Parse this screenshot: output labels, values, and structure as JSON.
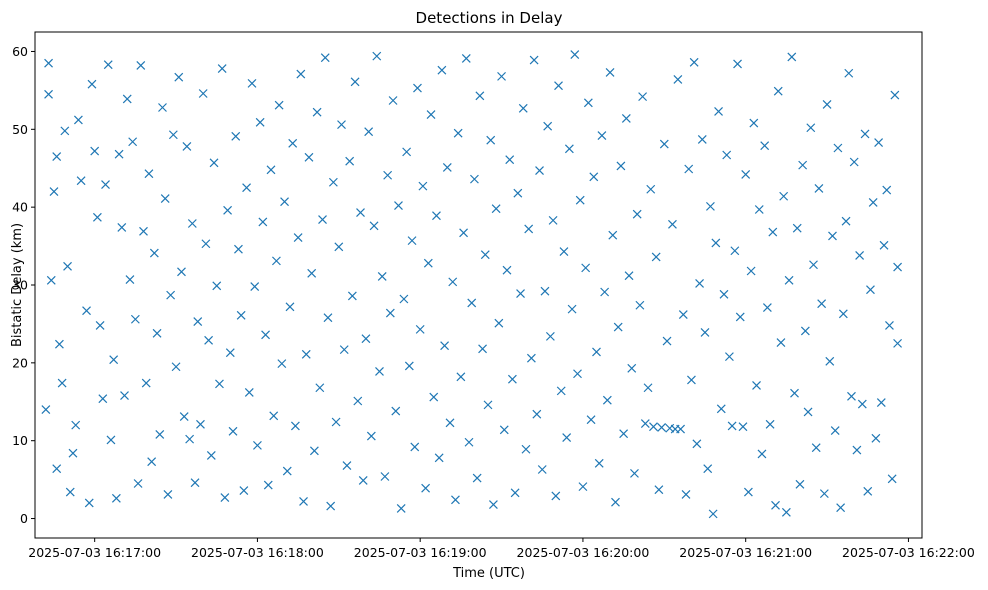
{
  "chart_data": {
    "type": "scatter",
    "title": "Detections in Delay",
    "xlabel": "Time (UTC)",
    "ylabel": "Bistatic Delay (km)",
    "marker": "x",
    "color": "#1f77b4",
    "x_ticks": [
      "2025-07-03 16:17:00",
      "2025-07-03 16:18:00",
      "2025-07-03 16:19:00",
      "2025-07-03 16:20:00",
      "2025-07-03 16:21:00",
      "2025-07-03 16:22:00"
    ],
    "xlim": [
      "2025-07-03 16:16:38",
      "2025-07-03 16:22:05"
    ],
    "y_ticks": [
      0,
      10,
      20,
      30,
      40,
      50,
      60
    ],
    "ylim": [
      -2.5,
      62.5
    ],
    "grid": false,
    "points": [
      [
        "2025-07-03 16:16:42",
        14
      ],
      [
        "2025-07-03 16:16:43",
        54.5
      ],
      [
        "2025-07-03 16:16:43",
        58.5
      ],
      [
        "2025-07-03 16:16:44",
        30.6
      ],
      [
        "2025-07-03 16:16:45",
        42
      ],
      [
        "2025-07-03 16:16:46",
        6.4
      ],
      [
        "2025-07-03 16:16:46",
        46.5
      ],
      [
        "2025-07-03 16:16:47",
        22.4
      ],
      [
        "2025-07-03 16:16:48",
        17.4
      ],
      [
        "2025-07-03 16:16:49",
        49.8
      ],
      [
        "2025-07-03 16:16:50",
        32.4
      ],
      [
        "2025-07-03 16:16:51",
        3.4
      ],
      [
        "2025-07-03 16:16:52",
        8.4
      ],
      [
        "2025-07-03 16:16:53",
        12
      ],
      [
        "2025-07-03 16:16:54",
        51.2
      ],
      [
        "2025-07-03 16:16:55",
        43.4
      ],
      [
        "2025-07-03 16:16:57",
        26.7
      ],
      [
        "2025-07-03 16:16:58",
        2
      ],
      [
        "2025-07-03 16:16:59",
        55.8
      ],
      [
        "2025-07-03 16:17:00",
        47.2
      ],
      [
        "2025-07-03 16:17:01",
        38.7
      ],
      [
        "2025-07-03 16:17:02",
        24.8
      ],
      [
        "2025-07-03 16:17:03",
        15.4
      ],
      [
        "2025-07-03 16:17:04",
        42.9
      ],
      [
        "2025-07-03 16:17:05",
        58.3
      ],
      [
        "2025-07-03 16:17:06",
        10.1
      ],
      [
        "2025-07-03 16:17:07",
        20.4
      ],
      [
        "2025-07-03 16:17:08",
        2.6
      ],
      [
        "2025-07-03 16:17:09",
        46.8
      ],
      [
        "2025-07-03 16:17:10",
        37.4
      ],
      [
        "2025-07-03 16:17:11",
        15.8
      ],
      [
        "2025-07-03 16:17:12",
        53.9
      ],
      [
        "2025-07-03 16:17:13",
        30.7
      ],
      [
        "2025-07-03 16:17:14",
        48.4
      ],
      [
        "2025-07-03 16:17:15",
        25.6
      ],
      [
        "2025-07-03 16:17:16",
        4.5
      ],
      [
        "2025-07-03 16:17:17",
        58.2
      ],
      [
        "2025-07-03 16:17:18",
        36.9
      ],
      [
        "2025-07-03 16:17:19",
        17.4
      ],
      [
        "2025-07-03 16:17:20",
        44.3
      ],
      [
        "2025-07-03 16:17:21",
        7.3
      ],
      [
        "2025-07-03 16:17:22",
        34.1
      ],
      [
        "2025-07-03 16:17:23",
        23.8
      ],
      [
        "2025-07-03 16:17:24",
        10.8
      ],
      [
        "2025-07-03 16:17:25",
        52.8
      ],
      [
        "2025-07-03 16:17:26",
        41.1
      ],
      [
        "2025-07-03 16:17:27",
        3.1
      ],
      [
        "2025-07-03 16:17:28",
        28.7
      ],
      [
        "2025-07-03 16:17:29",
        49.3
      ],
      [
        "2025-07-03 16:17:30",
        19.5
      ],
      [
        "2025-07-03 16:17:31",
        56.7
      ],
      [
        "2025-07-03 16:17:32",
        31.7
      ],
      [
        "2025-07-03 16:17:33",
        13.1
      ],
      [
        "2025-07-03 16:17:34",
        47.8
      ],
      [
        "2025-07-03 16:17:35",
        10.2
      ],
      [
        "2025-07-03 16:17:36",
        37.9
      ],
      [
        "2025-07-03 16:17:37",
        4.6
      ],
      [
        "2025-07-03 16:17:38",
        25.3
      ],
      [
        "2025-07-03 16:17:39",
        12.1
      ],
      [
        "2025-07-03 16:17:40",
        54.6
      ],
      [
        "2025-07-03 16:17:41",
        35.3
      ],
      [
        "2025-07-03 16:17:42",
        22.9
      ],
      [
        "2025-07-03 16:17:43",
        8.1
      ],
      [
        "2025-07-03 16:17:44",
        45.7
      ],
      [
        "2025-07-03 16:17:45",
        29.9
      ],
      [
        "2025-07-03 16:17:46",
        17.3
      ],
      [
        "2025-07-03 16:17:47",
        57.8
      ],
      [
        "2025-07-03 16:17:48",
        2.7
      ],
      [
        "2025-07-03 16:17:49",
        39.6
      ],
      [
        "2025-07-03 16:17:50",
        21.3
      ],
      [
        "2025-07-03 16:17:51",
        11.2
      ],
      [
        "2025-07-03 16:17:52",
        49.1
      ],
      [
        "2025-07-03 16:17:53",
        34.6
      ],
      [
        "2025-07-03 16:17:54",
        26.1
      ],
      [
        "2025-07-03 16:17:55",
        3.6
      ],
      [
        "2025-07-03 16:17:56",
        42.5
      ],
      [
        "2025-07-03 16:17:57",
        16.2
      ],
      [
        "2025-07-03 16:17:58",
        55.9
      ],
      [
        "2025-07-03 16:17:59",
        29.8
      ],
      [
        "2025-07-03 16:18:00",
        9.4
      ],
      [
        "2025-07-03 16:18:01",
        50.9
      ],
      [
        "2025-07-03 16:18:02",
        38.1
      ],
      [
        "2025-07-03 16:18:03",
        23.6
      ],
      [
        "2025-07-03 16:18:04",
        4.3
      ],
      [
        "2025-07-03 16:18:05",
        44.8
      ],
      [
        "2025-07-03 16:18:06",
        13.2
      ],
      [
        "2025-07-03 16:18:07",
        33.1
      ],
      [
        "2025-07-03 16:18:08",
        53.1
      ],
      [
        "2025-07-03 16:18:09",
        19.9
      ],
      [
        "2025-07-03 16:18:10",
        40.7
      ],
      [
        "2025-07-03 16:18:11",
        6.1
      ],
      [
        "2025-07-03 16:18:12",
        27.2
      ],
      [
        "2025-07-03 16:18:13",
        48.2
      ],
      [
        "2025-07-03 16:18:14",
        11.9
      ],
      [
        "2025-07-03 16:18:15",
        36.1
      ],
      [
        "2025-07-03 16:18:16",
        57.1
      ],
      [
        "2025-07-03 16:18:17",
        2.2
      ],
      [
        "2025-07-03 16:18:18",
        21.1
      ],
      [
        "2025-07-03 16:18:19",
        46.4
      ],
      [
        "2025-07-03 16:18:20",
        31.5
      ],
      [
        "2025-07-03 16:18:21",
        8.7
      ],
      [
        "2025-07-03 16:18:22",
        52.2
      ],
      [
        "2025-07-03 16:18:23",
        16.8
      ],
      [
        "2025-07-03 16:18:24",
        38.4
      ],
      [
        "2025-07-03 16:18:25",
        59.2
      ],
      [
        "2025-07-03 16:18:26",
        25.8
      ],
      [
        "2025-07-03 16:18:27",
        1.6
      ],
      [
        "2025-07-03 16:18:28",
        43.2
      ],
      [
        "2025-07-03 16:18:29",
        12.4
      ],
      [
        "2025-07-03 16:18:30",
        34.9
      ],
      [
        "2025-07-03 16:18:31",
        50.6
      ],
      [
        "2025-07-03 16:18:32",
        21.7
      ],
      [
        "2025-07-03 16:18:33",
        6.8
      ],
      [
        "2025-07-03 16:18:34",
        45.9
      ],
      [
        "2025-07-03 16:18:35",
        28.6
      ],
      [
        "2025-07-03 16:18:36",
        56.1
      ],
      [
        "2025-07-03 16:18:37",
        15.1
      ],
      [
        "2025-07-03 16:18:38",
        39.3
      ],
      [
        "2025-07-03 16:18:39",
        4.9
      ],
      [
        "2025-07-03 16:18:40",
        23.1
      ],
      [
        "2025-07-03 16:18:41",
        49.7
      ],
      [
        "2025-07-03 16:18:42",
        10.6
      ],
      [
        "2025-07-03 16:18:43",
        37.6
      ],
      [
        "2025-07-03 16:18:44",
        59.4
      ],
      [
        "2025-07-03 16:18:45",
        18.9
      ],
      [
        "2025-07-03 16:18:46",
        31.1
      ],
      [
        "2025-07-03 16:18:47",
        5.4
      ],
      [
        "2025-07-03 16:18:48",
        44.1
      ],
      [
        "2025-07-03 16:18:49",
        26.4
      ],
      [
        "2025-07-03 16:18:50",
        53.7
      ],
      [
        "2025-07-03 16:18:51",
        13.8
      ],
      [
        "2025-07-03 16:18:52",
        40.2
      ],
      [
        "2025-07-03 16:18:53",
        1.3
      ],
      [
        "2025-07-03 16:18:54",
        28.2
      ],
      [
        "2025-07-03 16:18:55",
        47.1
      ],
      [
        "2025-07-03 16:18:56",
        19.6
      ],
      [
        "2025-07-03 16:18:57",
        35.7
      ],
      [
        "2025-07-03 16:18:58",
        9.2
      ],
      [
        "2025-07-03 16:18:59",
        55.3
      ],
      [
        "2025-07-03 16:19:00",
        24.3
      ],
      [
        "2025-07-03 16:19:01",
        42.7
      ],
      [
        "2025-07-03 16:19:02",
        3.9
      ],
      [
        "2025-07-03 16:19:03",
        32.8
      ],
      [
        "2025-07-03 16:19:04",
        51.9
      ],
      [
        "2025-07-03 16:19:05",
        15.6
      ],
      [
        "2025-07-03 16:19:06",
        38.9
      ],
      [
        "2025-07-03 16:19:07",
        7.8
      ],
      [
        "2025-07-03 16:19:08",
        57.6
      ],
      [
        "2025-07-03 16:19:09",
        22.2
      ],
      [
        "2025-07-03 16:19:10",
        45.1
      ],
      [
        "2025-07-03 16:19:11",
        12.3
      ],
      [
        "2025-07-03 16:19:12",
        30.4
      ],
      [
        "2025-07-03 16:19:13",
        2.4
      ],
      [
        "2025-07-03 16:19:14",
        49.5
      ],
      [
        "2025-07-03 16:19:15",
        18.2
      ],
      [
        "2025-07-03 16:19:16",
        36.7
      ],
      [
        "2025-07-03 16:19:17",
        59.1
      ],
      [
        "2025-07-03 16:19:18",
        9.8
      ],
      [
        "2025-07-03 16:19:19",
        27.7
      ],
      [
        "2025-07-03 16:19:20",
        43.6
      ],
      [
        "2025-07-03 16:19:21",
        5.2
      ],
      [
        "2025-07-03 16:19:22",
        54.3
      ],
      [
        "2025-07-03 16:19:23",
        21.8
      ],
      [
        "2025-07-03 16:19:24",
        33.9
      ],
      [
        "2025-07-03 16:19:25",
        14.6
      ],
      [
        "2025-07-03 16:19:26",
        48.6
      ],
      [
        "2025-07-03 16:19:27",
        1.8
      ],
      [
        "2025-07-03 16:19:28",
        39.8
      ],
      [
        "2025-07-03 16:19:29",
        25.1
      ],
      [
        "2025-07-03 16:19:30",
        56.8
      ],
      [
        "2025-07-03 16:19:31",
        11.4
      ],
      [
        "2025-07-03 16:19:32",
        31.9
      ],
      [
        "2025-07-03 16:19:33",
        46.1
      ],
      [
        "2025-07-03 16:19:34",
        17.9
      ],
      [
        "2025-07-03 16:19:35",
        3.3
      ],
      [
        "2025-07-03 16:19:36",
        41.8
      ],
      [
        "2025-07-03 16:19:37",
        28.9
      ],
      [
        "2025-07-03 16:19:38",
        52.7
      ],
      [
        "2025-07-03 16:19:39",
        8.9
      ],
      [
        "2025-07-03 16:19:40",
        37.2
      ],
      [
        "2025-07-03 16:19:41",
        20.6
      ],
      [
        "2025-07-03 16:19:42",
        58.9
      ],
      [
        "2025-07-03 16:19:43",
        13.4
      ],
      [
        "2025-07-03 16:19:44",
        44.7
      ],
      [
        "2025-07-03 16:19:45",
        6.3
      ],
      [
        "2025-07-03 16:19:46",
        29.2
      ],
      [
        "2025-07-03 16:19:47",
        50.4
      ],
      [
        "2025-07-03 16:19:48",
        23.4
      ],
      [
        "2025-07-03 16:19:49",
        38.3
      ],
      [
        "2025-07-03 16:19:50",
        2.9
      ],
      [
        "2025-07-03 16:19:51",
        55.6
      ],
      [
        "2025-07-03 16:19:52",
        16.4
      ],
      [
        "2025-07-03 16:19:53",
        34.3
      ],
      [
        "2025-07-03 16:19:54",
        10.4
      ],
      [
        "2025-07-03 16:19:55",
        47.5
      ],
      [
        "2025-07-03 16:19:56",
        26.9
      ],
      [
        "2025-07-03 16:19:57",
        59.6
      ],
      [
        "2025-07-03 16:19:58",
        18.6
      ],
      [
        "2025-07-03 16:19:59",
        40.9
      ],
      [
        "2025-07-03 16:20:00",
        4.1
      ],
      [
        "2025-07-03 16:20:01",
        32.2
      ],
      [
        "2025-07-03 16:20:02",
        53.4
      ],
      [
        "2025-07-03 16:20:03",
        12.7
      ],
      [
        "2025-07-03 16:20:04",
        43.9
      ],
      [
        "2025-07-03 16:20:05",
        21.4
      ],
      [
        "2025-07-03 16:20:06",
        7.1
      ],
      [
        "2025-07-03 16:20:07",
        49.2
      ],
      [
        "2025-07-03 16:20:08",
        29.1
      ],
      [
        "2025-07-03 16:20:09",
        15.2
      ],
      [
        "2025-07-03 16:20:10",
        57.3
      ],
      [
        "2025-07-03 16:20:11",
        36.4
      ],
      [
        "2025-07-03 16:20:12",
        2.1
      ],
      [
        "2025-07-03 16:20:13",
        24.6
      ],
      [
        "2025-07-03 16:20:14",
        45.3
      ],
      [
        "2025-07-03 16:20:15",
        10.9
      ],
      [
        "2025-07-03 16:20:16",
        51.4
      ],
      [
        "2025-07-03 16:20:17",
        31.2
      ],
      [
        "2025-07-03 16:20:18",
        19.3
      ],
      [
        "2025-07-03 16:20:19",
        5.8
      ],
      [
        "2025-07-03 16:20:20",
        39.1
      ],
      [
        "2025-07-03 16:20:21",
        27.4
      ],
      [
        "2025-07-03 16:20:22",
        54.2
      ],
      [
        "2025-07-03 16:20:23",
        12.2
      ],
      [
        "2025-07-03 16:20:24",
        16.8
      ],
      [
        "2025-07-03 16:20:25",
        42.3
      ],
      [
        "2025-07-03 16:20:26",
        11.8
      ],
      [
        "2025-07-03 16:20:27",
        33.6
      ],
      [
        "2025-07-03 16:20:28",
        3.7
      ],
      [
        "2025-07-03 16:20:29",
        11.7
      ],
      [
        "2025-07-03 16:20:30",
        48.1
      ],
      [
        "2025-07-03 16:20:31",
        22.8
      ],
      [
        "2025-07-03 16:20:32",
        11.6
      ],
      [
        "2025-07-03 16:20:33",
        37.8
      ],
      [
        "2025-07-03 16:20:34",
        11.5
      ],
      [
        "2025-07-03 16:20:35",
        56.4
      ],
      [
        "2025-07-03 16:20:36",
        11.5
      ],
      [
        "2025-07-03 16:20:37",
        26.2
      ],
      [
        "2025-07-03 16:20:38",
        3.1
      ],
      [
        "2025-07-03 16:20:39",
        44.9
      ],
      [
        "2025-07-03 16:20:40",
        17.8
      ],
      [
        "2025-07-03 16:20:41",
        58.6
      ],
      [
        "2025-07-03 16:20:42",
        9.6
      ],
      [
        "2025-07-03 16:20:43",
        30.2
      ],
      [
        "2025-07-03 16:20:44",
        48.7
      ],
      [
        "2025-07-03 16:20:45",
        23.9
      ],
      [
        "2025-07-03 16:20:46",
        6.4
      ],
      [
        "2025-07-03 16:20:47",
        40.1
      ],
      [
        "2025-07-03 16:20:48",
        0.6
      ],
      [
        "2025-07-03 16:20:49",
        35.4
      ],
      [
        "2025-07-03 16:20:50",
        52.3
      ],
      [
        "2025-07-03 16:20:51",
        14.1
      ],
      [
        "2025-07-03 16:20:52",
        28.8
      ],
      [
        "2025-07-03 16:20:53",
        46.7
      ],
      [
        "2025-07-03 16:20:54",
        20.8
      ],
      [
        "2025-07-03 16:20:55",
        11.9
      ],
      [
        "2025-07-03 16:20:56",
        34.4
      ],
      [
        "2025-07-03 16:20:57",
        58.4
      ],
      [
        "2025-07-03 16:20:58",
        25.9
      ],
      [
        "2025-07-03 16:20:59",
        11.8
      ],
      [
        "2025-07-03 16:21:00",
        44.2
      ],
      [
        "2025-07-03 16:21:01",
        3.4
      ],
      [
        "2025-07-03 16:21:02",
        31.8
      ],
      [
        "2025-07-03 16:21:03",
        50.8
      ],
      [
        "2025-07-03 16:21:04",
        17.1
      ],
      [
        "2025-07-03 16:21:05",
        39.7
      ],
      [
        "2025-07-03 16:21:06",
        8.3
      ],
      [
        "2025-07-03 16:21:07",
        47.9
      ],
      [
        "2025-07-03 16:21:08",
        27.1
      ],
      [
        "2025-07-03 16:21:09",
        12.1
      ],
      [
        "2025-07-03 16:21:10",
        36.8
      ],
      [
        "2025-07-03 16:21:11",
        1.7
      ],
      [
        "2025-07-03 16:21:12",
        54.9
      ],
      [
        "2025-07-03 16:21:13",
        22.6
      ],
      [
        "2025-07-03 16:21:14",
        41.4
      ],
      [
        "2025-07-03 16:21:15",
        0.8
      ],
      [
        "2025-07-03 16:21:16",
        30.6
      ],
      [
        "2025-07-03 16:21:17",
        59.3
      ],
      [
        "2025-07-03 16:21:18",
        16.1
      ],
      [
        "2025-07-03 16:21:19",
        37.3
      ],
      [
        "2025-07-03 16:21:20",
        4.4
      ],
      [
        "2025-07-03 16:21:21",
        45.4
      ],
      [
        "2025-07-03 16:21:22",
        24.1
      ],
      [
        "2025-07-03 16:21:23",
        13.7
      ],
      [
        "2025-07-03 16:21:24",
        50.2
      ],
      [
        "2025-07-03 16:21:25",
        32.6
      ],
      [
        "2025-07-03 16:21:26",
        9.1
      ],
      [
        "2025-07-03 16:21:27",
        42.4
      ],
      [
        "2025-07-03 16:21:28",
        27.6
      ],
      [
        "2025-07-03 16:21:29",
        3.2
      ],
      [
        "2025-07-03 16:21:30",
        53.2
      ],
      [
        "2025-07-03 16:21:31",
        20.2
      ],
      [
        "2025-07-03 16:21:32",
        36.3
      ],
      [
        "2025-07-03 16:21:33",
        11.3
      ],
      [
        "2025-07-03 16:21:34",
        47.6
      ],
      [
        "2025-07-03 16:21:35",
        1.4
      ],
      [
        "2025-07-03 16:21:36",
        26.3
      ],
      [
        "2025-07-03 16:21:37",
        38.2
      ],
      [
        "2025-07-03 16:21:38",
        57.2
      ],
      [
        "2025-07-03 16:21:39",
        15.7
      ],
      [
        "2025-07-03 16:21:40",
        45.8
      ],
      [
        "2025-07-03 16:21:41",
        8.8
      ],
      [
        "2025-07-03 16:21:42",
        33.8
      ],
      [
        "2025-07-03 16:21:43",
        14.7
      ],
      [
        "2025-07-03 16:21:44",
        49.4
      ],
      [
        "2025-07-03 16:21:45",
        3.5
      ],
      [
        "2025-07-03 16:21:46",
        29.4
      ],
      [
        "2025-07-03 16:21:47",
        40.6
      ],
      [
        "2025-07-03 16:21:48",
        10.3
      ],
      [
        "2025-07-03 16:21:49",
        48.3
      ],
      [
        "2025-07-03 16:21:50",
        14.9
      ],
      [
        "2025-07-03 16:21:51",
        35.1
      ],
      [
        "2025-07-03 16:21:52",
        42.2
      ],
      [
        "2025-07-03 16:21:53",
        24.8
      ],
      [
        "2025-07-03 16:21:54",
        5.1
      ],
      [
        "2025-07-03 16:21:55",
        54.4
      ],
      [
        "2025-07-03 16:21:56",
        22.5
      ],
      [
        "2025-07-03 16:21:56",
        32.3
      ]
    ]
  }
}
